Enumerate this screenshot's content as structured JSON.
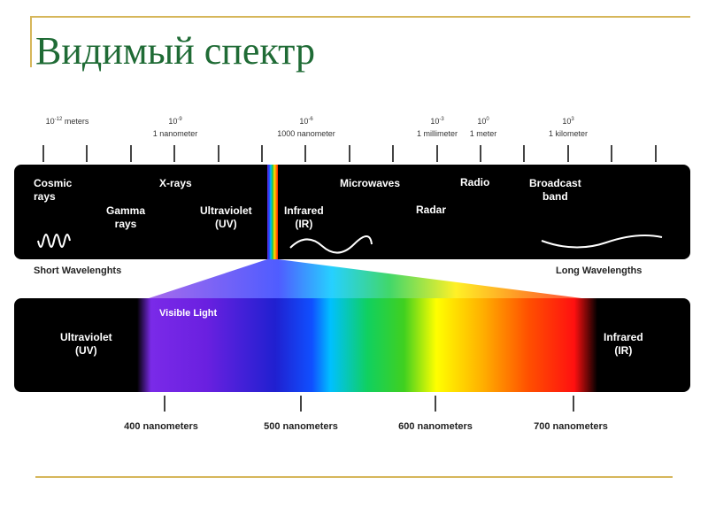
{
  "title": "Видимый спектр",
  "scale_labels": [
    {
      "exp": "-12",
      "name": "meters"
    },
    {
      "exp": "-9",
      "name": "1 nanometer"
    },
    {
      "exp": "-6",
      "name": "1000 nanometer"
    },
    {
      "exp": "-3",
      "name": "1 millimeter"
    },
    {
      "exp": "0",
      "name": "1 meter"
    },
    {
      "exp": "3",
      "name": "1 kilometer"
    }
  ],
  "base": "10",
  "regions": {
    "cosmic": [
      "Cosmic",
      "rays"
    ],
    "gamma": [
      "Gamma",
      "rays"
    ],
    "xrays": "X-rays",
    "uv": [
      "Ultraviolet",
      "(UV)"
    ],
    "ir": [
      "Infrared",
      "(IR)"
    ],
    "microwaves": "Microwaves",
    "radar": "Radar",
    "radio": "Radio",
    "broadcast": [
      "Broadcast",
      "band"
    ]
  },
  "short_label": "Short Wavelenghts",
  "long_label": "Long Wavelengths",
  "visible": {
    "label": "Visible Light",
    "uv": [
      "Ultraviolet",
      "(UV)"
    ],
    "ir": [
      "Infrared",
      "(IR)"
    ],
    "ticks": [
      "400 nanometers",
      "500 nanometers",
      "600 nanometers",
      "700 nanometers"
    ]
  },
  "colors": {
    "title": "#1f6b35",
    "rule": "#d6b65a"
  }
}
